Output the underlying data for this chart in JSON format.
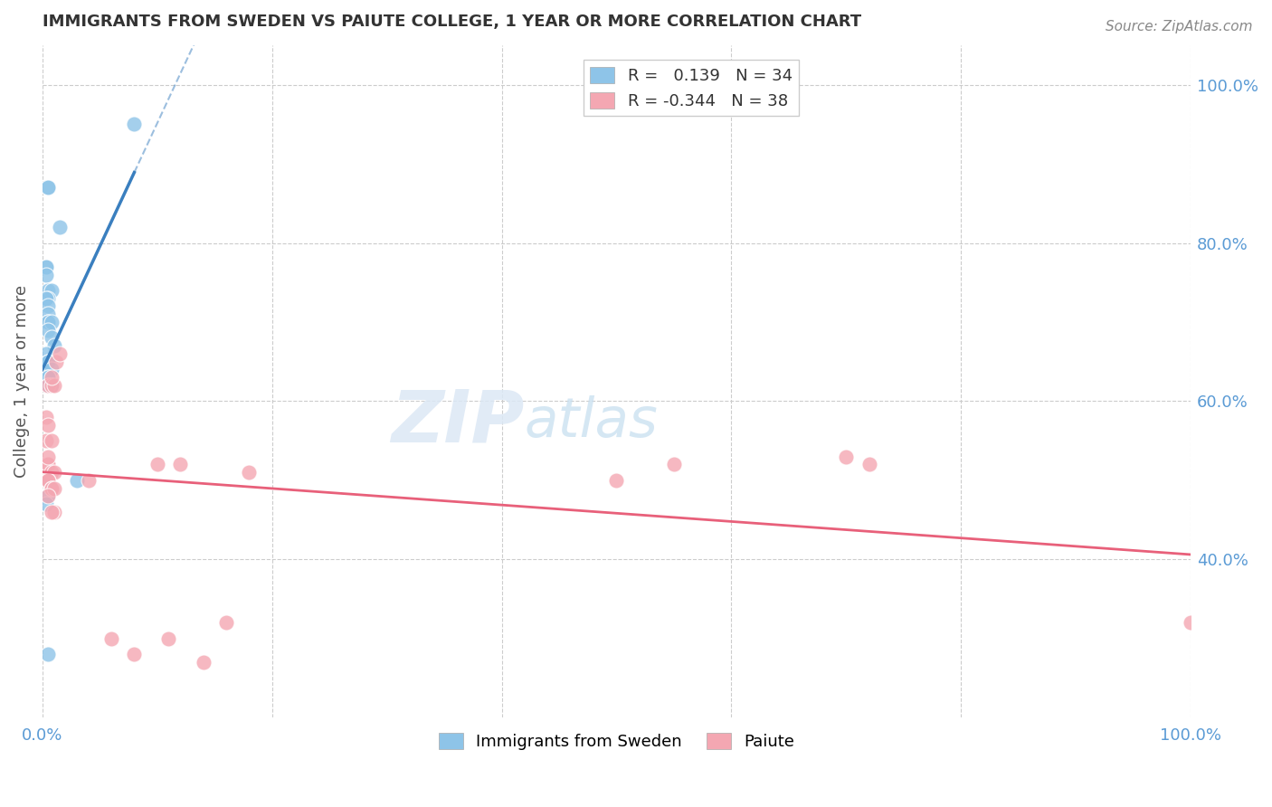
{
  "title": "IMMIGRANTS FROM SWEDEN VS PAIUTE COLLEGE, 1 YEAR OR MORE CORRELATION CHART",
  "source": "Source: ZipAtlas.com",
  "ylabel": "College, 1 year or more",
  "legend_label_blue": "Immigrants from Sweden",
  "legend_label_pink": "Paiute",
  "R_blue": 0.139,
  "N_blue": 34,
  "R_pink": -0.344,
  "N_pink": 38,
  "blue_scatter_x": [
    0.5,
    0.5,
    1.5,
    0.3,
    0.3,
    0.3,
    0.5,
    0.8,
    0.5,
    0.3,
    0.5,
    0.5,
    0.5,
    0.5,
    0.8,
    0.5,
    0.8,
    1.0,
    0.3,
    0.5,
    0.5,
    0.8,
    0.5,
    0.5,
    0.5,
    0.8,
    0.3,
    0.5,
    0.5,
    3.0,
    0.5,
    0.3,
    0.5,
    8.0
  ],
  "blue_scatter_y": [
    87,
    87,
    82,
    77,
    77,
    76,
    74,
    74,
    73,
    73,
    72,
    71,
    70,
    70,
    70,
    69,
    68,
    67,
    66,
    65,
    65,
    64,
    63,
    63,
    62,
    62,
    50,
    50,
    50,
    50,
    48,
    47,
    28,
    95
  ],
  "pink_scatter_x": [
    0.3,
    0.5,
    0.5,
    0.8,
    1.0,
    0.3,
    0.5,
    0.5,
    0.8,
    0.8,
    1.0,
    1.2,
    0.5,
    0.8,
    1.0,
    0.3,
    0.5,
    0.8,
    0.5,
    0.8,
    1.5,
    0.5,
    1.0,
    0.8,
    4.0,
    6.0,
    8.0,
    10.0,
    11.0,
    12.0,
    14.0,
    16.0,
    18.0,
    50.0,
    55.0,
    70.0,
    72.0,
    100.0
  ],
  "pink_scatter_y": [
    55,
    52,
    52,
    51,
    51,
    50,
    50,
    50,
    49,
    49,
    49,
    65,
    62,
    62,
    62,
    58,
    57,
    55,
    53,
    63,
    66,
    48,
    46,
    46,
    50,
    30,
    28,
    52,
    30,
    52,
    27,
    32,
    51,
    50,
    52,
    53,
    52,
    32
  ],
  "blue_color": "#8ec4e8",
  "pink_color": "#f4a7b2",
  "blue_line_color": "#3a7fbf",
  "pink_line_color": "#e8607a",
  "bg_color": "#ffffff",
  "grid_color": "#cccccc",
  "title_color": "#333333",
  "tick_color": "#5b9bd5",
  "xmin": 0,
  "xmax": 100,
  "ymin": 20,
  "ymax": 105,
  "blue_solid_xmax": 8.0,
  "right_yticks": [
    40,
    60,
    80,
    100
  ],
  "right_yticklabels": [
    "40.0%",
    "60.0%",
    "80.0%",
    "100.0%"
  ]
}
